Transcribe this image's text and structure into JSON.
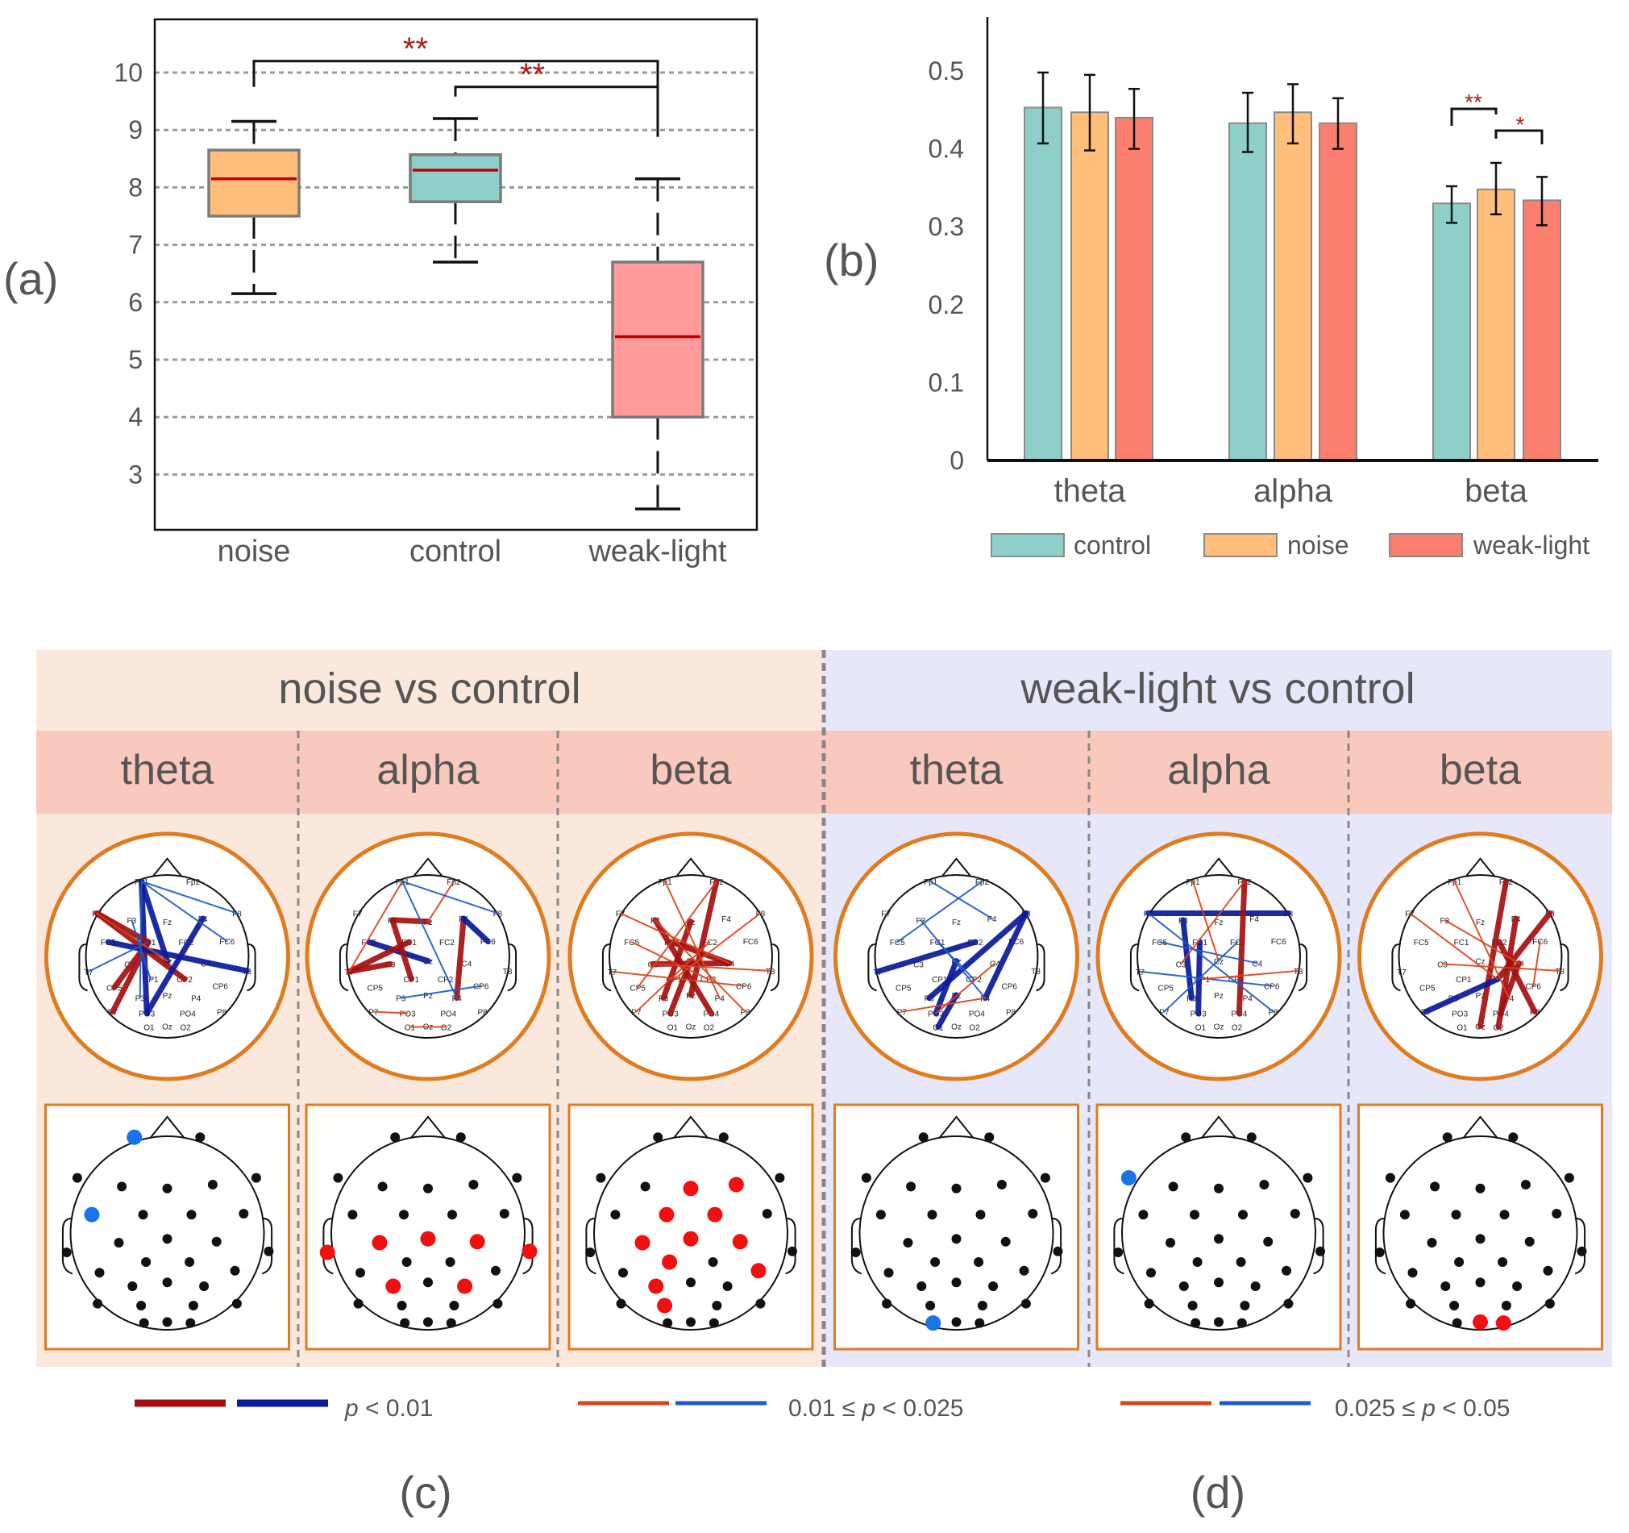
{
  "panel_labels": {
    "a": "(a)",
    "b": "(b)",
    "c": "(c)",
    "d": "(d)"
  },
  "colors": {
    "control": "#8ecfc9",
    "noise": "#ffbe7a",
    "weak_light": "#fa7f6f",
    "weak_light_box": "#ff9b9b",
    "median": "#c00000",
    "signif": "#b01818",
    "strong_red": "#a50f0f",
    "strong_blue": "#0a1a9c",
    "weak_red": "#d9441c",
    "weak_blue": "#1e5ac8",
    "highlight_red": "#f01010",
    "highlight_blue": "#1a73e8",
    "noise_bg": "#fbe8dc",
    "weak_light_bg": "#e7e7fa",
    "band_bg": "#f9c9bd",
    "frame_orange": "#e07b1f"
  },
  "chart_data": [
    {
      "type": "box",
      "categories": [
        "noise",
        "control",
        "weak-light"
      ],
      "yticks": [
        3,
        4,
        5,
        6,
        7,
        8,
        9,
        10
      ],
      "ylim": [
        2.04,
        10.92
      ],
      "grid": "dashed horizontal",
      "boxes": [
        {
          "name": "noise",
          "whisker_low": 6.15,
          "q1": 7.5,
          "median": 8.15,
          "q3": 8.65,
          "whisker_high": 9.15,
          "color": "#ffbe7a"
        },
        {
          "name": "control",
          "whisker_low": 6.7,
          "q1": 7.75,
          "median": 8.3,
          "q3": 8.57,
          "whisker_high": 9.2,
          "color": "#8ecfc9"
        },
        {
          "name": "weak-light",
          "whisker_low": 2.4,
          "q1": 4.0,
          "median": 5.4,
          "q3": 6.7,
          "whisker_high": 8.15,
          "color": "#ff9b9b"
        }
      ],
      "significance": [
        {
          "from": "noise",
          "to": "weak-light",
          "label": "**",
          "level": 10.2
        },
        {
          "from": "control",
          "to": "weak-light",
          "label": "**",
          "level": 9.75
        }
      ]
    },
    {
      "type": "bar",
      "categories": [
        "theta",
        "alpha",
        "beta"
      ],
      "ylim": [
        0,
        0.57
      ],
      "yticks": [
        "0",
        "0.1",
        "0.2",
        "0.3",
        "0.4",
        "0.5"
      ],
      "legend_position": "bottom",
      "series": [
        {
          "name": "control",
          "values": [
            0.453,
            0.433,
            0.33
          ],
          "err_low": [
            0.407,
            0.396,
            0.305
          ],
          "err_high": [
            0.498,
            0.472,
            0.352
          ]
        },
        {
          "name": "noise",
          "values": [
            0.447,
            0.447,
            0.348
          ],
          "err_low": [
            0.398,
            0.407,
            0.316
          ],
          "err_high": [
            0.495,
            0.483,
            0.382
          ]
        },
        {
          "name": "weak-light",
          "values": [
            0.44,
            0.433,
            0.334
          ],
          "err_low": [
            0.4,
            0.4,
            0.302
          ],
          "err_high": [
            0.477,
            0.465,
            0.364
          ]
        }
      ],
      "significance": [
        {
          "category": "beta",
          "from": "control",
          "to": "noise",
          "label": "**"
        },
        {
          "category": "beta",
          "from": "noise",
          "to": "weak-light",
          "label": "*"
        }
      ]
    }
  ],
  "comparisons": [
    {
      "title": "noise vs control",
      "bands": [
        {
          "label": "theta",
          "highlight_color": "blue",
          "highlighted": [
            "Fp1",
            "FC5"
          ],
          "edges": [
            [
              "Fp1",
              "PO3",
              "sb"
            ],
            [
              "Fp1",
              "Cz",
              "sb"
            ],
            [
              "F7",
              "CP2",
              "sr"
            ],
            [
              "F7",
              "FC1",
              "sr"
            ],
            [
              "CP5",
              "FC1",
              "sr"
            ],
            [
              "P7",
              "FC1",
              "sr"
            ],
            [
              "F4",
              "PO3",
              "sb"
            ],
            [
              "FC5",
              "T8",
              "sb"
            ],
            [
              "T7",
              "FC1",
              "wb"
            ],
            [
              "Fp1",
              "F8",
              "wb"
            ],
            [
              "Fp1",
              "FC6",
              "wb"
            ],
            [
              "F7",
              "Cz",
              "wr"
            ],
            [
              "P3",
              "Fp1",
              "wb"
            ],
            [
              "F3",
              "CP1",
              "wb"
            ]
          ]
        },
        {
          "label": "alpha",
          "highlight_color": "red",
          "highlighted": [
            "T7",
            "T8",
            "C3",
            "Cz",
            "C4",
            "P3",
            "P4"
          ],
          "edges": [
            [
              "FC5",
              "Cz",
              "sb"
            ],
            [
              "T7",
              "FC1",
              "sr"
            ],
            [
              "T7",
              "C3",
              "sr"
            ],
            [
              "F3",
              "Fz",
              "sr"
            ],
            [
              "F3",
              "CP1",
              "sr"
            ],
            [
              "F4",
              "P4",
              "sr"
            ],
            [
              "F4",
              "FC6",
              "sb"
            ],
            [
              "Fp1",
              "T7",
              "wr"
            ],
            [
              "Fp1",
              "P4",
              "wb"
            ],
            [
              "Fp2",
              "Fz",
              "wr"
            ],
            [
              "Fp1",
              "F8",
              "wb"
            ],
            [
              "P7",
              "PO3",
              "wr"
            ],
            [
              "O1",
              "O2",
              "wr"
            ],
            [
              "P3",
              "CP6",
              "wb"
            ]
          ]
        },
        {
          "label": "beta",
          "highlight_color": "red",
          "highlighted": [
            "Fz",
            "F4",
            "FC1",
            "FC2",
            "C3",
            "Cz",
            "C4",
            "CP1",
            "CP6",
            "P3",
            "PO3"
          ],
          "edges": [
            [
              "Fp2",
              "Pz",
              "sr"
            ],
            [
              "F3",
              "PO4",
              "sr"
            ],
            [
              "FC1",
              "C4",
              "sr"
            ],
            [
              "Fz",
              "P3",
              "sr"
            ],
            [
              "C3",
              "C4",
              "sr"
            ],
            [
              "Cz",
              "PO3",
              "sr"
            ],
            [
              "Fp1",
              "P4",
              "wr"
            ],
            [
              "F7",
              "C4",
              "wr"
            ],
            [
              "FC5",
              "CP2",
              "wr"
            ],
            [
              "F8",
              "CP1",
              "wr"
            ],
            [
              "T7",
              "CP6",
              "wr"
            ],
            [
              "Fp2",
              "CP5",
              "wr"
            ],
            [
              "F3",
              "P8",
              "wr"
            ],
            [
              "P7",
              "FC2",
              "wr"
            ],
            [
              "T8",
              "C3",
              "wr"
            ]
          ]
        }
      ]
    },
    {
      "title": "weak-light vs control",
      "bands": [
        {
          "label": "theta",
          "highlight_color": "blue",
          "highlighted": [
            "O1"
          ],
          "edges": [
            [
              "T7",
              "FC2",
              "sb"
            ],
            [
              "P3",
              "F8",
              "sb"
            ],
            [
              "PO3",
              "Cz",
              "sb"
            ],
            [
              "O1",
              "Pz",
              "sb"
            ],
            [
              "F8",
              "P4",
              "sb"
            ],
            [
              "Fp1",
              "F4",
              "wb"
            ],
            [
              "F3",
              "P4",
              "wb"
            ],
            [
              "Fp2",
              "FC5",
              "wb"
            ],
            [
              "P7",
              "P4",
              "wr"
            ],
            [
              "PO3",
              "C4",
              "wr"
            ],
            [
              "FC1",
              "CP2",
              "wb"
            ]
          ]
        },
        {
          "label": "alpha",
          "highlight_color": "blue",
          "highlighted": [
            "F7"
          ],
          "edges": [
            [
              "F7",
              "F8",
              "sb"
            ],
            [
              "Fp2",
              "PO4",
              "sr"
            ],
            [
              "FC1",
              "PO3",
              "sb"
            ],
            [
              "F3",
              "P3",
              "sb"
            ],
            [
              "F7",
              "P8",
              "wb"
            ],
            [
              "FC5",
              "C4",
              "wb"
            ],
            [
              "Fp1",
              "Cz",
              "wr"
            ],
            [
              "T7",
              "CP6",
              "wb"
            ],
            [
              "FC2",
              "P7",
              "wb"
            ],
            [
              "C3",
              "Fp2",
              "wr"
            ],
            [
              "CP1",
              "T8",
              "wr"
            ]
          ]
        },
        {
          "label": "beta",
          "highlight_color": "red",
          "highlighted": [
            "Oz",
            "O2"
          ],
          "edges": [
            [
              "Fp2",
              "Oz",
              "sr"
            ],
            [
              "F4",
              "O2",
              "sr"
            ],
            [
              "CP2",
              "F8",
              "sr"
            ],
            [
              "FC2",
              "P8",
              "sr"
            ],
            [
              "C4",
              "PO4",
              "sr"
            ],
            [
              "P7",
              "CP2",
              "sb"
            ],
            [
              "F7",
              "CP2",
              "wr"
            ],
            [
              "F3",
              "C4",
              "wr"
            ],
            [
              "Fp1",
              "P4",
              "wr"
            ],
            [
              "FC6",
              "CP6",
              "wr"
            ],
            [
              "C3",
              "T8",
              "wr"
            ]
          ]
        }
      ]
    }
  ],
  "electrodes": [
    "Fp1",
    "Fp2",
    "F7",
    "F3",
    "Fz",
    "F4",
    "F8",
    "FC5",
    "FC1",
    "FC2",
    "FC6",
    "T7",
    "C3",
    "Cz",
    "C4",
    "T8",
    "CP5",
    "CP1",
    "CP2",
    "CP6",
    "P7",
    "P3",
    "Pz",
    "P4",
    "P8",
    "PO3",
    "PO4",
    "O1",
    "Oz",
    "O2"
  ],
  "legend": [
    {
      "label": "p < 0.01",
      "prefix": "",
      "p": "p",
      "suffix": " < 0.01",
      "style": "strong"
    },
    {
      "label": "0.01 ≤ p < 0.025",
      "prefix": "0.01 ≤ ",
      "p": "p",
      "suffix": " < 0.025",
      "style": "weak"
    },
    {
      "label": "0.025 ≤ p < 0.05",
      "prefix": "0.025 ≤ ",
      "p": "p",
      "suffix": " < 0.05",
      "style": "weak"
    }
  ]
}
